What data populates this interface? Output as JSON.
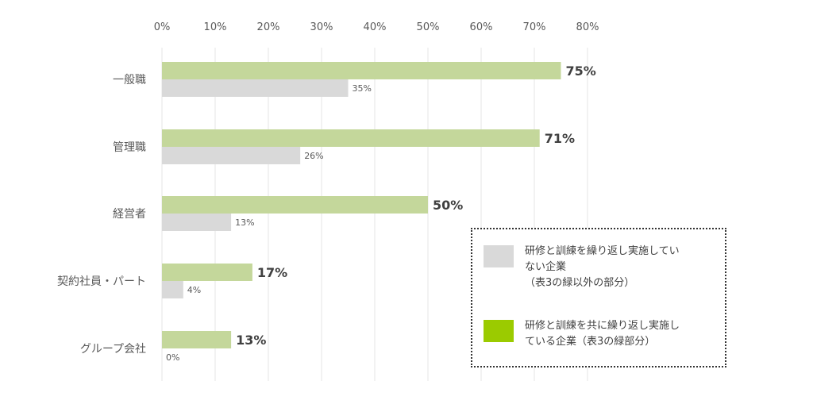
{
  "chart_data": {
    "type": "bar",
    "orientation": "horizontal",
    "categories": [
      "一般職",
      "管理職",
      "経営者",
      "契約社員・パート",
      "グループ会社"
    ],
    "series": [
      {
        "name": "研修と訓練を共に繰り返し実施している企業（表3の緑部分）",
        "values": [
          75,
          71,
          50,
          17,
          13
        ],
        "color": "#c4d79b",
        "label_style": "bold"
      },
      {
        "name": "研修と訓練を繰り返し実施していない企業（表3の緑以外の部分）",
        "values": [
          35,
          26,
          13,
          4,
          0
        ],
        "color": "#d9d9d9",
        "label_style": "small"
      }
    ],
    "xlim": [
      0,
      80
    ],
    "xticks": [
      "0%",
      "10%",
      "20%",
      "30%",
      "40%",
      "50%",
      "60%",
      "70%",
      "80%"
    ],
    "value_suffix": "%",
    "grid": true,
    "legend_position": "bottom-right"
  },
  "legend": {
    "items": [
      {
        "lines": [
          "研修と訓練を繰り返し実施してい",
          "ない企業",
          "（表3の緑以外の部分）"
        ],
        "color": "#d9d9d9"
      },
      {
        "lines": [
          "研修と訓練を共に繰り返し実施し",
          "ている企業（表3の緑部分）"
        ],
        "color": "#9bcb00"
      }
    ]
  }
}
